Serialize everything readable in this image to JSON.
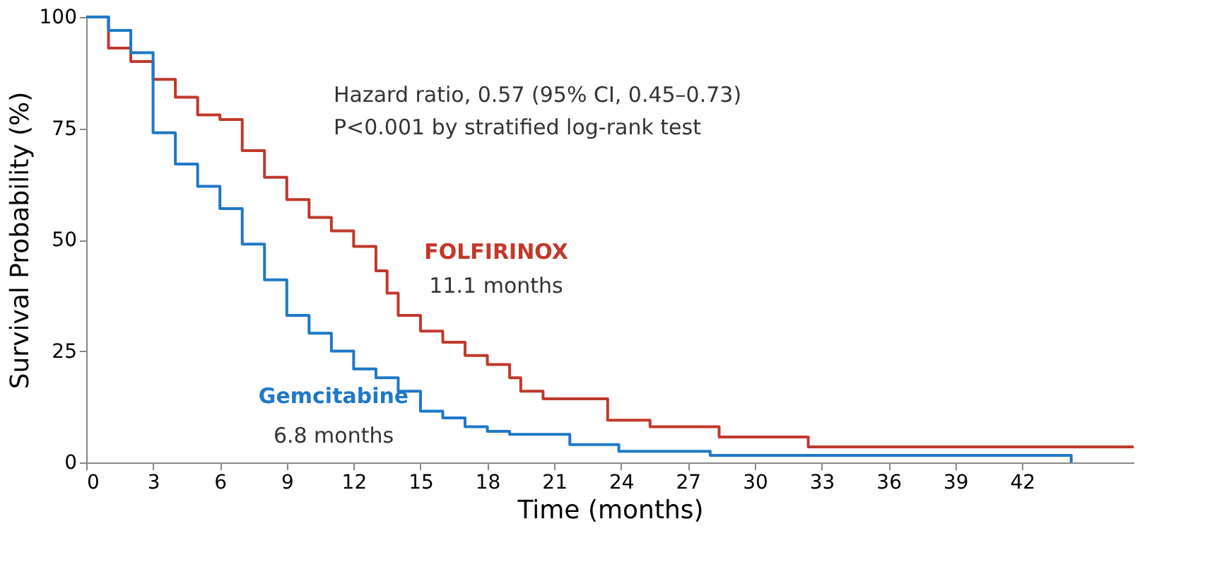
{
  "chart_data": {
    "type": "step",
    "xlabel": "Time (months)",
    "ylabel": "Survival Probability (%)",
    "xlim": [
      0,
      47
    ],
    "xticks": [
      0,
      3,
      6,
      9,
      12,
      15,
      18,
      21,
      24,
      27,
      30,
      33,
      36,
      39,
      42
    ],
    "ylim": [
      0,
      100
    ],
    "yticks": [
      0,
      25,
      50,
      75,
      100
    ],
    "grid": false,
    "legend": false,
    "marker": "none",
    "line_style": "solid",
    "series": [
      {
        "name": "FOLFIRINOX",
        "color": "#c0392b",
        "x": [
          0,
          1,
          2,
          3,
          4,
          5,
          6,
          7,
          8,
          9,
          10,
          11,
          12,
          13,
          13.5,
          14,
          15,
          16,
          17,
          18,
          19,
          19.5,
          20.5,
          23.4,
          25.3,
          28.4,
          32.4,
          47
        ],
        "values": [
          100,
          93,
          90,
          86,
          82,
          78,
          77,
          70,
          64,
          59,
          55,
          52,
          48.5,
          43,
          38,
          33,
          29.5,
          27,
          24,
          22,
          19,
          16,
          14.3,
          9.5,
          8,
          5.7,
          3.5,
          3.5
        ]
      },
      {
        "name": "Gemcitabine",
        "color": "#1f78c8",
        "x": [
          0,
          1,
          2,
          3,
          4,
          5,
          6,
          7,
          8,
          9,
          10,
          11,
          12,
          13,
          14,
          15,
          16,
          17,
          18,
          19,
          21.7,
          23.9,
          28,
          44.2
        ],
        "values": [
          100,
          97,
          92,
          74,
          67,
          62,
          57,
          49,
          41,
          33,
          29,
          25,
          21,
          19,
          16,
          11.5,
          10,
          8,
          7,
          6.3,
          4,
          2.5,
          1.6,
          0
        ]
      }
    ],
    "annotations": [
      "Hazard ratio, 0.57 (95% CI, 0.45–0.73)",
      "P<0.001 by stratified log-rank test",
      "11.1 months",
      "6.8 months"
    ]
  }
}
